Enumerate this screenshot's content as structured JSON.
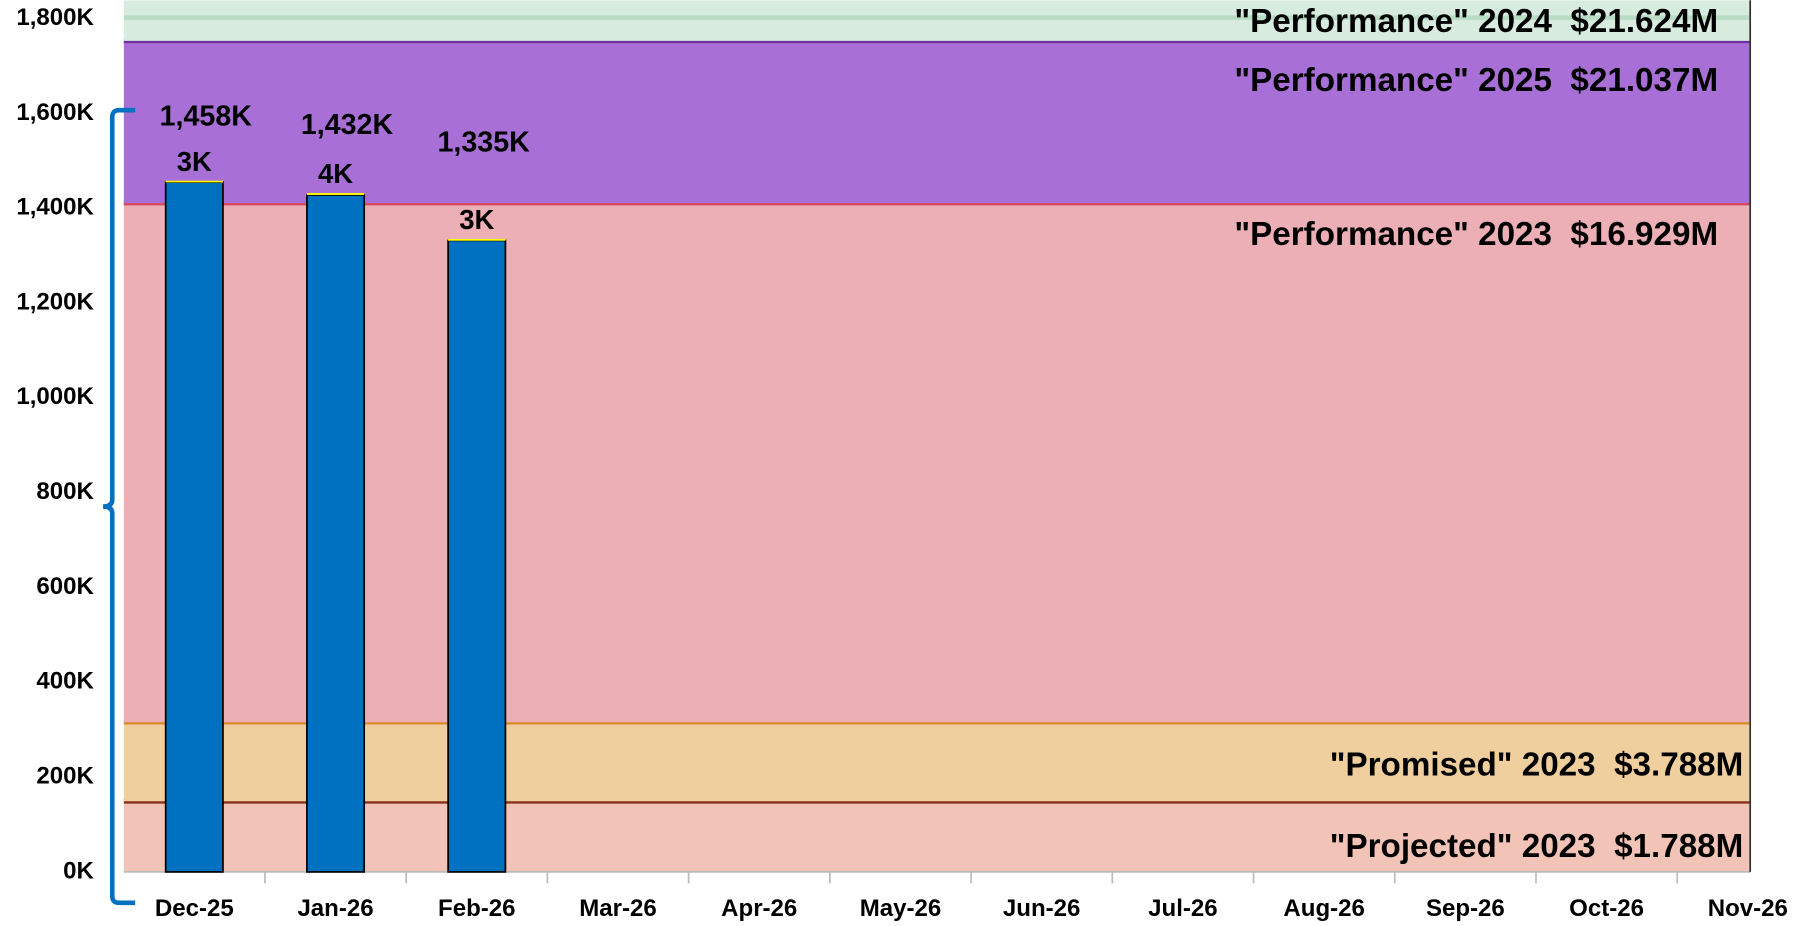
{
  "chart_data": {
    "type": "bar",
    "categories": [
      "Dec-25",
      "Jan-26",
      "Feb-26",
      "Mar-26",
      "Apr-26",
      "May-26",
      "Jun-26",
      "Jul-26",
      "Aug-26",
      "Sep-26",
      "Oct-26",
      "Nov-26"
    ],
    "series": [
      {
        "color": "#0070c0",
        "values": [
          1455,
          1428,
          1332,
          null,
          null,
          null,
          null,
          null,
          null,
          null,
          null,
          null
        ]
      },
      {
        "color": "#ffff00",
        "values": [
          3,
          4,
          3,
          null,
          null,
          null,
          null,
          null,
          null,
          null,
          null,
          null
        ],
        "value_labels": [
          "3K",
          "4K",
          "3K",
          null,
          null,
          null,
          null,
          null,
          null,
          null,
          null,
          null
        ]
      }
    ],
    "totals": {
      "values": [
        1458,
        1432,
        1335,
        null,
        null,
        null,
        null,
        null,
        null,
        null,
        null,
        null
      ],
      "value_labels": [
        "1,458K",
        "1,432K",
        "1,335K",
        null,
        null,
        null,
        null,
        null,
        null,
        null,
        null,
        null
      ]
    },
    "reference_lines": [
      {
        "label": "\"Projected\" 2023  $1.788M",
        "value": 149,
        "line_color": "#8b2e1a",
        "band_color": "#f2c4b8"
      },
      {
        "label": "\"Promised\" 2023  $3.788M",
        "value": 315.7,
        "line_color": "#d88a2a",
        "band_color": "#f0cf9e"
      },
      {
        "label": "\"Performance\" 2023  $16.929M",
        "value": 1410.75,
        "line_color": "#d6485a",
        "band_color": "#ecafb5"
      },
      {
        "label": "\"Performance\" 2025  $21.037M",
        "value": 1753,
        "line_color": "#7030a0",
        "band_color": "#a86fd6"
      },
      {
        "label": "\"Performance\" 2024  $21.624M",
        "value": 1802,
        "line_color": "#b8dcc4",
        "band_color": "#d7ecdf"
      }
    ],
    "ylim": [
      0,
      1800
    ],
    "yticks": [
      {
        "value": 0,
        "label": "0K"
      },
      {
        "value": 200,
        "label": "200K"
      },
      {
        "value": 400,
        "label": "400K"
      },
      {
        "value": 600,
        "label": "600K"
      },
      {
        "value": 800,
        "label": "800K"
      },
      {
        "value": 1000,
        "label": "1,000K"
      },
      {
        "value": 1200,
        "label": "1,200K"
      },
      {
        "value": 1400,
        "label": "1,400K"
      },
      {
        "value": 1600,
        "label": "1,600K"
      },
      {
        "value": 1800,
        "label": "1,800K"
      }
    ]
  }
}
